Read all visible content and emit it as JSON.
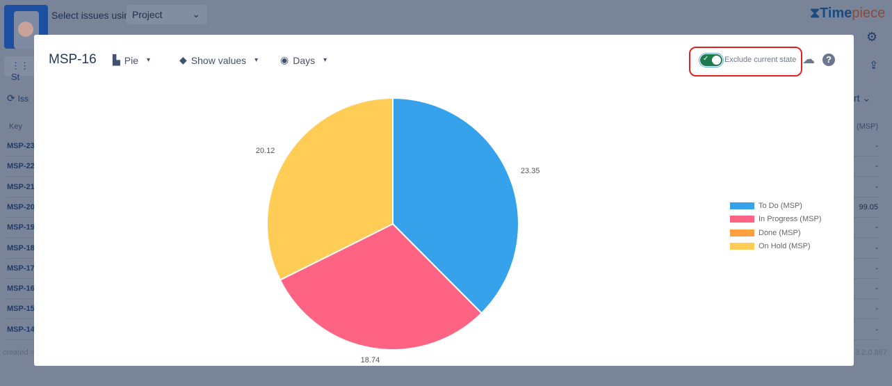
{
  "background": {
    "select_label": "Select issues using",
    "select_value": "Project",
    "brand": {
      "main": "Time",
      "accent": "piece"
    },
    "button_partial": "St",
    "issues_partial": "Iss",
    "sort_partial": "rt",
    "key_header": "Key",
    "col_header_partial": "(MSP)",
    "rows": [
      {
        "key": "MSP-23",
        "value": "-"
      },
      {
        "key": "MSP-22",
        "value": "-"
      },
      {
        "key": "MSP-21",
        "value": "-"
      },
      {
        "key": "MSP-20",
        "value": "99.05"
      },
      {
        "key": "MSP-19",
        "value": "-"
      },
      {
        "key": "MSP-18",
        "value": "-"
      },
      {
        "key": "MSP-17",
        "value": "-"
      },
      {
        "key": "MSP-16",
        "value": "-"
      },
      {
        "key": "MSP-15",
        "value": "-"
      },
      {
        "key": "MSP-14",
        "value": "-"
      }
    ],
    "footer_left": "created >",
    "version": "3.2.0.867"
  },
  "modal": {
    "title": "MSP-16",
    "chart_type": {
      "label": "Pie",
      "icon": "bar-chart-icon"
    },
    "values": {
      "label": "Show values",
      "icon": "tag-icon"
    },
    "unit": {
      "label": "Days",
      "icon": "eye-icon"
    },
    "exclude_current_state": {
      "label": "Exclude current state",
      "on": true
    }
  },
  "chart_data": {
    "type": "pie",
    "categories": [
      "To Do (MSP)",
      "In Progress (MSP)",
      "Done (MSP)",
      "On Hold (MSP)"
    ],
    "values": [
      23.35,
      18.74,
      0,
      20.12
    ],
    "colors": [
      "#36a2eb",
      "#ff6384",
      "#ff9f40",
      "#ffcd56"
    ],
    "labels": [
      "23.35",
      "18.74",
      "",
      "20.12"
    ],
    "legend": "right"
  }
}
